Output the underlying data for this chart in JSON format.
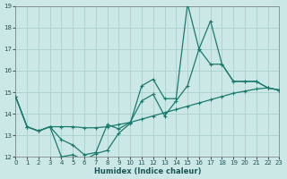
{
  "xlabel": "Humidex (Indice chaleur)",
  "bg_color": "#cce8e6",
  "grid_color": "#aacfcc",
  "line_color": "#1a7a6e",
  "xlim": [
    0,
    23
  ],
  "ylim": [
    12,
    19
  ],
  "yticks": [
    12,
    13,
    14,
    15,
    16,
    17,
    18,
    19
  ],
  "xticks": [
    0,
    1,
    2,
    3,
    4,
    5,
    6,
    7,
    8,
    9,
    10,
    11,
    12,
    13,
    14,
    15,
    16,
    17,
    18,
    19,
    20,
    21,
    22,
    23
  ],
  "line1_y": [
    14.8,
    13.4,
    13.2,
    13.4,
    12.0,
    12.1,
    11.85,
    12.15,
    12.3,
    13.1,
    13.55,
    15.3,
    15.6,
    14.7,
    14.7,
    19.1,
    17.0,
    16.3,
    16.3,
    15.5,
    15.5,
    15.5,
    15.2,
    15.1
  ],
  "line2_y": [
    14.8,
    13.4,
    13.2,
    13.4,
    12.8,
    12.55,
    12.1,
    12.2,
    13.5,
    13.3,
    13.6,
    14.6,
    14.9,
    13.9,
    14.6,
    15.3,
    17.0,
    18.3,
    16.3,
    15.5,
    15.5,
    15.5,
    15.2,
    15.1
  ],
  "line3_y": [
    14.8,
    13.4,
    13.2,
    13.4,
    13.4,
    13.4,
    13.35,
    13.35,
    13.4,
    13.5,
    13.6,
    13.75,
    13.9,
    14.05,
    14.2,
    14.35,
    14.5,
    14.65,
    14.8,
    14.95,
    15.05,
    15.15,
    15.2,
    15.1
  ]
}
